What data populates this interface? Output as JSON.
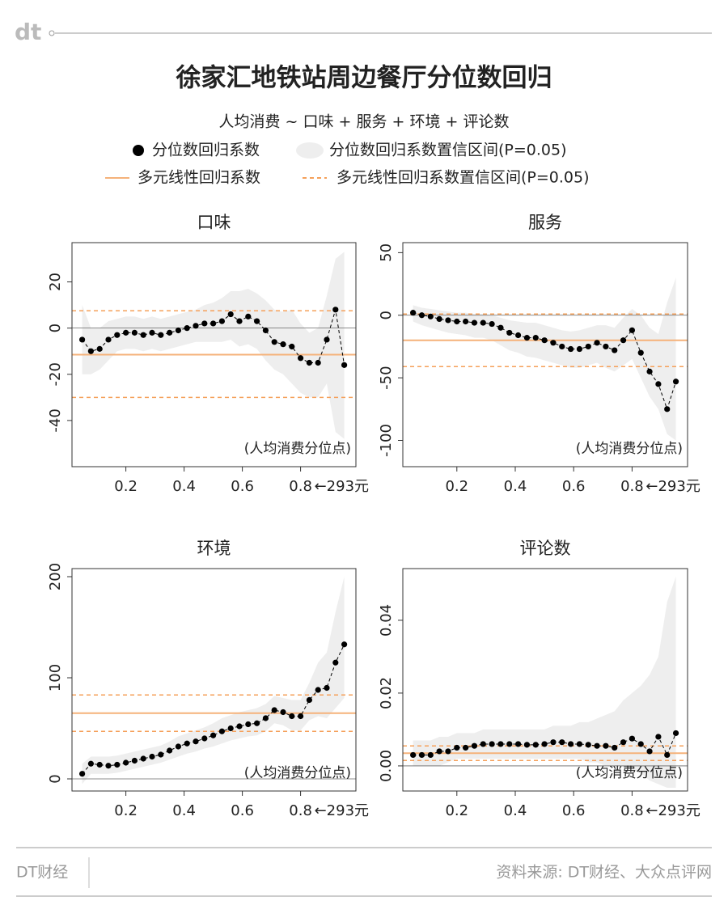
{
  "logo": "dt",
  "title": "徐家汇地铁站周边餐厅分位数回归",
  "subtitle": "人均消费 ~  口味 + 服务 + 环境 + 评论数",
  "legend": [
    {
      "name": "分位数回归系数",
      "color": "#000000"
    },
    {
      "name": "分位数回归系数置信区间(P=0.05)",
      "color": "#eeeeee"
    },
    {
      "name": "多元线性回归系数",
      "color": "#f5b27a"
    },
    {
      "name": "多元线性回归系数置信区间(P=0.05)",
      "color": "#f5a05a"
    }
  ],
  "brand": "DT财经",
  "source": "资料来源: DT财经、大众点评网",
  "chart_data": [
    {
      "type": "scatter",
      "title": "口味",
      "xlabel": "(人均消费分位点)",
      "annotation": "←293元",
      "x": [
        0.05,
        0.08,
        0.11,
        0.14,
        0.17,
        0.2,
        0.23,
        0.26,
        0.29,
        0.32,
        0.35,
        0.38,
        0.41,
        0.44,
        0.47,
        0.5,
        0.53,
        0.56,
        0.59,
        0.62,
        0.65,
        0.68,
        0.71,
        0.74,
        0.77,
        0.8,
        0.83,
        0.86,
        0.89,
        0.92,
        0.95
      ],
      "series": [
        {
          "color": "#000000",
          "values": [
            -5,
            -10,
            -9,
            -5,
            -3,
            -2,
            -2,
            -3,
            -2,
            -3,
            -2,
            -1,
            0,
            1,
            2,
            2,
            3,
            6,
            3,
            5,
            3,
            -1,
            -6,
            -7,
            -8,
            -13,
            -15,
            -15,
            -5,
            8,
            -16
          ]
        }
      ],
      "band": {
        "color": "#eeeeee",
        "lower": [
          -20,
          -20,
          -18,
          -14,
          -10,
          -9,
          -9,
          -10,
          -9,
          -10,
          -9,
          -8,
          -7,
          -6,
          -6,
          -6,
          -6,
          -5,
          -8,
          -7,
          -9,
          -14,
          -18,
          -20,
          -24,
          -28,
          -30,
          -30,
          -24,
          -45,
          -48
        ],
        "upper": [
          10,
          0,
          0,
          3,
          4,
          5,
          5,
          4,
          5,
          4,
          5,
          6,
          7,
          8,
          10,
          11,
          13,
          16,
          16,
          17,
          15,
          12,
          8,
          7,
          8,
          2,
          -2,
          0,
          14,
          30,
          33
        ]
      },
      "ols": {
        "color": "#f5b27a",
        "value": -11.5,
        "ci": [
          -30,
          7.5
        ]
      },
      "xlim": [
        0.015,
        0.99
      ],
      "ylim": [
        -60,
        37
      ],
      "xticks": [
        0.2,
        0.4,
        0.6,
        0.8
      ],
      "yticks": [
        -40,
        -20,
        0,
        20
      ]
    },
    {
      "type": "scatter",
      "title": "服务",
      "xlabel": "(人均消费分位点)",
      "annotation": "←293元",
      "x": [
        0.05,
        0.08,
        0.11,
        0.14,
        0.17,
        0.2,
        0.23,
        0.26,
        0.29,
        0.32,
        0.35,
        0.38,
        0.41,
        0.44,
        0.47,
        0.5,
        0.53,
        0.56,
        0.59,
        0.62,
        0.65,
        0.68,
        0.71,
        0.74,
        0.77,
        0.8,
        0.83,
        0.86,
        0.89,
        0.92,
        0.95
      ],
      "series": [
        {
          "color": "#000000",
          "values": [
            2,
            0,
            -1,
            -3,
            -4,
            -5,
            -5,
            -6,
            -6,
            -7,
            -10,
            -14,
            -16,
            -18,
            -18,
            -20,
            -22,
            -25,
            -27,
            -27,
            -25,
            -22,
            -25,
            -28,
            -20,
            -12,
            -30,
            -45,
            -55,
            -75,
            -53
          ]
        }
      ],
      "band": {
        "color": "#eeeeee",
        "lower": [
          -5,
          -8,
          -10,
          -12,
          -14,
          -15,
          -16,
          -18,
          -18,
          -20,
          -24,
          -28,
          -30,
          -33,
          -34,
          -36,
          -38,
          -40,
          -42,
          -42,
          -40,
          -38,
          -42,
          -45,
          -40,
          -35,
          -50,
          -65,
          -75,
          -95,
          -100
        ],
        "upper": [
          8,
          6,
          5,
          4,
          3,
          2,
          2,
          1,
          1,
          0,
          -2,
          -4,
          -5,
          -6,
          -6,
          -8,
          -10,
          -12,
          -13,
          -12,
          -10,
          -8,
          -8,
          -10,
          -2,
          5,
          0,
          -10,
          -15,
          10,
          30
        ]
      },
      "ols": {
        "color": "#f5b27a",
        "value": -20,
        "ci": [
          -41,
          1
        ]
      },
      "xlim": [
        0.015,
        0.99
      ],
      "ylim": [
        -121,
        58
      ],
      "xticks": [
        0.2,
        0.4,
        0.6,
        0.8
      ],
      "yticks": [
        -100,
        -50,
        0,
        50
      ]
    },
    {
      "type": "scatter",
      "title": "环境",
      "xlabel": "(人均消费分位点)",
      "annotation": "←293元",
      "x": [
        0.05,
        0.08,
        0.11,
        0.14,
        0.17,
        0.2,
        0.23,
        0.26,
        0.29,
        0.32,
        0.35,
        0.38,
        0.41,
        0.44,
        0.47,
        0.5,
        0.53,
        0.56,
        0.59,
        0.62,
        0.65,
        0.68,
        0.71,
        0.74,
        0.77,
        0.8,
        0.83,
        0.86,
        0.89,
        0.92,
        0.95
      ],
      "series": [
        {
          "color": "#000000",
          "values": [
            5,
            15,
            14,
            13,
            14,
            16,
            18,
            20,
            22,
            24,
            28,
            32,
            35,
            37,
            40,
            43,
            47,
            50,
            52,
            54,
            55,
            60,
            68,
            66,
            62,
            62,
            78,
            88,
            90,
            115,
            133
          ]
        }
      ],
      "band": {
        "color": "#eeeeee",
        "lower": [
          -5,
          5,
          5,
          5,
          6,
          8,
          10,
          12,
          14,
          16,
          19,
          22,
          25,
          27,
          30,
          32,
          35,
          38,
          40,
          42,
          43,
          47,
          55,
          53,
          48,
          48,
          58,
          62,
          60,
          70,
          80
        ],
        "upper": [
          15,
          22,
          22,
          22,
          23,
          25,
          27,
          29,
          31,
          33,
          37,
          42,
          45,
          48,
          51,
          55,
          60,
          63,
          66,
          68,
          70,
          74,
          82,
          80,
          78,
          78,
          95,
          115,
          125,
          165,
          200
        ]
      },
      "ols": {
        "color": "#f5b27a",
        "value": 65,
        "ci": [
          47,
          83
        ]
      },
      "xlim": [
        0.015,
        0.99
      ],
      "ylim": [
        -12,
        208
      ],
      "xticks": [
        0.2,
        0.4,
        0.6,
        0.8
      ],
      "yticks": [
        0,
        100,
        200
      ]
    },
    {
      "type": "scatter",
      "title": "评论数",
      "xlabel": "(人均消费分位点)",
      "annotation": "←293元",
      "x": [
        0.05,
        0.08,
        0.11,
        0.14,
        0.17,
        0.2,
        0.23,
        0.26,
        0.29,
        0.32,
        0.35,
        0.38,
        0.41,
        0.44,
        0.47,
        0.5,
        0.53,
        0.56,
        0.59,
        0.62,
        0.65,
        0.68,
        0.71,
        0.74,
        0.77,
        0.8,
        0.83,
        0.86,
        0.89,
        0.92,
        0.95
      ],
      "series": [
        {
          "color": "#000000",
          "values": [
            0.003,
            0.003,
            0.003,
            0.004,
            0.004,
            0.005,
            0.005,
            0.0055,
            0.006,
            0.006,
            0.006,
            0.006,
            0.006,
            0.0058,
            0.0058,
            0.006,
            0.0065,
            0.0065,
            0.006,
            0.006,
            0.0058,
            0.0055,
            0.0055,
            0.005,
            0.0065,
            0.0075,
            0.006,
            0.004,
            0.008,
            0.003,
            0.009
          ]
        }
      ],
      "band": {
        "color": "#eeeeee",
        "lower": [
          0,
          0,
          0,
          0,
          0.001,
          0.002,
          0.002,
          0.002,
          0.002,
          0.002,
          0.002,
          0.002,
          0.002,
          0.002,
          0.002,
          0.002,
          0.002,
          0.002,
          0.002,
          0.002,
          0.001,
          0.001,
          0,
          0,
          0,
          -0.001,
          -0.002,
          -0.004,
          -0.005,
          -0.006,
          -0.006
        ],
        "upper": [
          0.007,
          0.007,
          0.007,
          0.008,
          0.008,
          0.009,
          0.009,
          0.009,
          0.01,
          0.01,
          0.01,
          0.01,
          0.01,
          0.01,
          0.01,
          0.01,
          0.011,
          0.011,
          0.011,
          0.012,
          0.012,
          0.013,
          0.014,
          0.015,
          0.018,
          0.02,
          0.022,
          0.025,
          0.03,
          0.045,
          0.052
        ]
      },
      "ols": {
        "color": "#f5b27a",
        "value": 0.0035,
        "ci": [
          0.0015,
          0.0055
        ]
      },
      "xlim": [
        0.015,
        0.99
      ],
      "ylim": [
        -0.0069,
        0.0542
      ],
      "xticks": [
        0.2,
        0.4,
        0.6,
        0.8
      ],
      "yticks": [
        {
          "value": 0,
          "label": "0.00"
        },
        0.02,
        0.04
      ]
    }
  ]
}
